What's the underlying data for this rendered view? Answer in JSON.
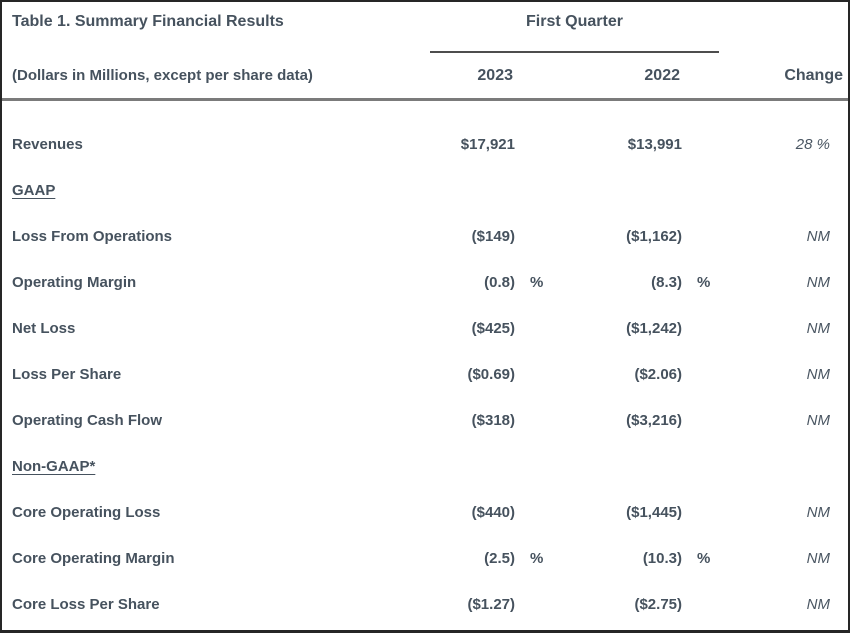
{
  "table": {
    "title": "Table 1. Summary Financial Results",
    "subtitle": "(Dollars in Millions, except per share data)",
    "quarter_header": "First Quarter",
    "columns": {
      "col_2023": "2023",
      "col_2022": "2022",
      "col_change": "Change"
    },
    "rows": [
      {
        "label": "Revenues",
        "v2023": "$17,921",
        "p2023": "",
        "v2022": "$13,991",
        "p2022": "",
        "change": "28 %"
      },
      {
        "label": "GAAP",
        "v2023": "",
        "p2023": "",
        "v2022": "",
        "p2022": "",
        "change": ""
      },
      {
        "label": "Loss From Operations",
        "v2023": "($149)",
        "p2023": "",
        "v2022": "($1,162)",
        "p2022": "",
        "change": "NM"
      },
      {
        "label": "Operating Margin",
        "v2023": "(0.8)",
        "p2023": "%",
        "v2022": "(8.3)",
        "p2022": "%",
        "change": "NM"
      },
      {
        "label": "Net Loss",
        "v2023": "($425)",
        "p2023": "",
        "v2022": "($1,242)",
        "p2022": "",
        "change": "NM"
      },
      {
        "label": "Loss Per Share",
        "v2023": "($0.69)",
        "p2023": "",
        "v2022": "($2.06)",
        "p2022": "",
        "change": "NM"
      },
      {
        "label": "Operating Cash Flow",
        "v2023": "($318)",
        "p2023": "",
        "v2022": "($3,216)",
        "p2022": "",
        "change": "NM"
      },
      {
        "label": "Non-GAAP*",
        "v2023": "",
        "p2023": "",
        "v2022": "",
        "p2022": "",
        "change": ""
      },
      {
        "label": "Core Operating Loss",
        "v2023": "($440)",
        "p2023": "",
        "v2022": "($1,445)",
        "p2022": "",
        "change": "NM"
      },
      {
        "label": "Core Operating Margin",
        "v2023": "(2.5)",
        "p2023": "%",
        "v2022": "(10.3)",
        "p2022": "%",
        "change": "NM"
      },
      {
        "label": "Core Loss Per Share",
        "v2023": "($1.27)",
        "p2023": "",
        "v2022": "($2.75)",
        "p2022": "",
        "change": "NM"
      }
    ]
  },
  "chart_data": {
    "type": "table",
    "title": "Table 1. Summary Financial Results",
    "units": "Dollars in Millions, except per share data",
    "period": "First Quarter",
    "columns": [
      "2023",
      "2022",
      "Change"
    ],
    "rows": [
      [
        "Revenues",
        "$17,921",
        "$13,991",
        "28 %"
      ],
      [
        "GAAP",
        "",
        "",
        ""
      ],
      [
        "Loss From Operations",
        "($149)",
        "($1,162)",
        "NM"
      ],
      [
        "Operating Margin",
        "(0.8) %",
        "(8.3) %",
        "NM"
      ],
      [
        "Net Loss",
        "($425)",
        "($1,242)",
        "NM"
      ],
      [
        "Loss Per Share",
        "($0.69)",
        "($2.06)",
        "NM"
      ],
      [
        "Operating Cash Flow",
        "($318)",
        "($3,216)",
        "NM"
      ],
      [
        "Non-GAAP*",
        "",
        "",
        ""
      ],
      [
        "Core Operating Loss",
        "($440)",
        "($1,445)",
        "NM"
      ],
      [
        "Core Operating Margin",
        "(2.5) %",
        "(10.3) %",
        "NM"
      ],
      [
        "Core Loss Per Share",
        "($1.27)",
        "($2.75)",
        "NM"
      ]
    ]
  },
  "colors": {
    "text": "#46525e",
    "outer_border": "#262626",
    "header_rule": "#7b7b7b",
    "quarter_underline": "#4d4d4d",
    "background": "#ffffff"
  }
}
